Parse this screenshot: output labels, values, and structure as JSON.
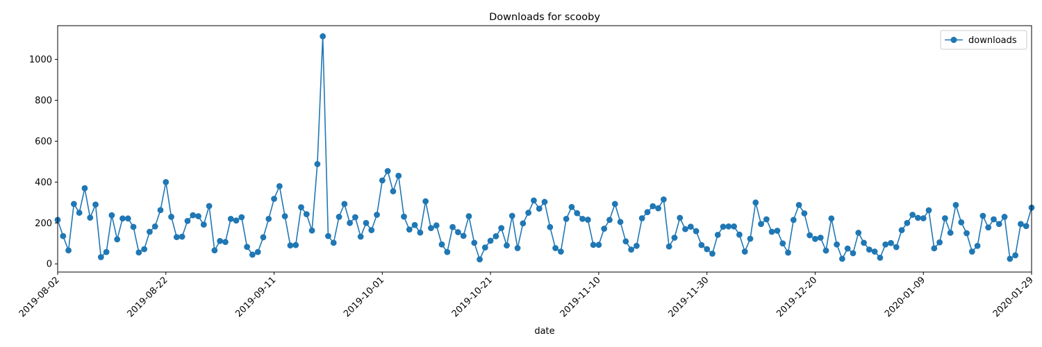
{
  "chart_data": {
    "type": "line",
    "title": "Downloads for scooby",
    "xlabel": "date",
    "ylabel": "",
    "x_start": "2019-08-02",
    "x_end": "2020-01-29",
    "xticks": [
      "2019-08-02",
      "2019-08-22",
      "2019-09-11",
      "2019-10-01",
      "2019-10-21",
      "2019-11-10",
      "2019-11-30",
      "2019-12-20",
      "2020-01-09",
      "2020-01-29"
    ],
    "yticks": [
      0,
      200,
      400,
      600,
      800,
      1000
    ],
    "ylim": [
      -40,
      1165
    ],
    "grid": false,
    "legend_position": "top-right",
    "series": [
      {
        "name": "downloads",
        "color": "#1f77b4",
        "marker": "circle",
        "values": [
          215,
          136,
          66,
          293,
          250,
          370,
          226,
          290,
          33,
          58,
          238,
          120,
          222,
          222,
          181,
          56,
          72,
          157,
          183,
          263,
          400,
          230,
          131,
          133,
          210,
          238,
          233,
          192,
          283,
          66,
          112,
          107,
          220,
          212,
          228,
          83,
          45,
          58,
          130,
          220,
          318,
          380,
          233,
          90,
          92,
          277,
          243,
          163,
          488,
          1113,
          136,
          103,
          230,
          293,
          200,
          228,
          133,
          200,
          165,
          240,
          408,
          454,
          355,
          431,
          231,
          168,
          190,
          153,
          306,
          175,
          188,
          95,
          58,
          180,
          155,
          137,
          233,
          103,
          22,
          80,
          113,
          135,
          175,
          90,
          235,
          77,
          198,
          250,
          310,
          270,
          303,
          180,
          77,
          60,
          220,
          278,
          248,
          220,
          216,
          93,
          93,
          172,
          215,
          293,
          205,
          110,
          70,
          88,
          223,
          253,
          282,
          272,
          315,
          85,
          128,
          225,
          170,
          182,
          160,
          92,
          72,
          50,
          142,
          182,
          183,
          183,
          143,
          60,
          123,
          300,
          195,
          218,
          157,
          162,
          100,
          55,
          215,
          288,
          247,
          140,
          122,
          128,
          65,
          222,
          95,
          25,
          75,
          52,
          152,
          103,
          70,
          60,
          30,
          95,
          102,
          82,
          165,
          200,
          240,
          225,
          223,
          262,
          76,
          105,
          223,
          152,
          288,
          203,
          150,
          60,
          88,
          235,
          178,
          218,
          195,
          230,
          25,
          42,
          195,
          185,
          275
        ]
      }
    ]
  }
}
